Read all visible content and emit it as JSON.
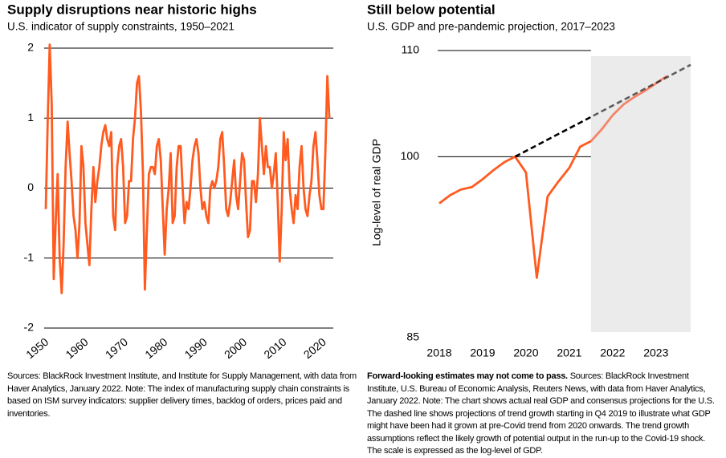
{
  "chart_data": [
    {
      "type": "line",
      "title": "Supply disruptions near historic highs",
      "subtitle": "U.S. indicator of supply constraints, 1950–2021",
      "color": "#ff5a1f",
      "x": [
        1950,
        1950.5,
        1951,
        1951.5,
        1952,
        1952.5,
        1953,
        1953.5,
        1954,
        1954.5,
        1955,
        1955.5,
        1956,
        1956.5,
        1957,
        1957.5,
        1958,
        1958.5,
        1959,
        1959.5,
        1960,
        1960.5,
        1961,
        1961.5,
        1962,
        1962.5,
        1963,
        1963.5,
        1964,
        1964.5,
        1965,
        1965.5,
        1966,
        1966.5,
        1967,
        1967.5,
        1968,
        1968.5,
        1969,
        1969.5,
        1970,
        1970.5,
        1971,
        1971.5,
        1972,
        1972.5,
        1973,
        1973.5,
        1974,
        1974.5,
        1975,
        1975.5,
        1976,
        1976.5,
        1977,
        1977.5,
        1978,
        1978.5,
        1979,
        1979.5,
        1980,
        1980.5,
        1981,
        1981.5,
        1982,
        1982.5,
        1983,
        1983.5,
        1984,
        1984.5,
        1985,
        1985.5,
        1986,
        1986.5,
        1987,
        1987.5,
        1988,
        1988.5,
        1989,
        1989.5,
        1990,
        1990.5,
        1991,
        1991.5,
        1992,
        1992.5,
        1993,
        1993.5,
        1994,
        1994.5,
        1995,
        1995.5,
        1996,
        1996.5,
        1997,
        1997.5,
        1998,
        1998.5,
        1999,
        1999.5,
        2000,
        2000.5,
        2001,
        2001.5,
        2002,
        2002.5,
        2003,
        2003.5,
        2004,
        2004.5,
        2005,
        2005.5,
        2006,
        2006.5,
        2007,
        2007.5,
        2008,
        2008.5,
        2009,
        2009.5,
        2010,
        2010.5,
        2011,
        2011.5,
        2012,
        2012.5,
        2013,
        2013.5,
        2014,
        2014.5,
        2015,
        2015.5,
        2016,
        2016.5,
        2017,
        2017.5,
        2018,
        2018.5,
        2019,
        2019.5,
        2020,
        2020.5,
        2021,
        2021.5
      ],
      "values": [
        -0.3,
        1.0,
        2.05,
        1.2,
        -1.3,
        -0.5,
        0.2,
        -1.0,
        -1.5,
        -0.8,
        0.3,
        0.95,
        0.5,
        0.1,
        -0.4,
        -0.6,
        -1.0,
        -0.5,
        0.6,
        0.3,
        -0.5,
        -0.8,
        -1.1,
        -0.3,
        0.3,
        -0.2,
        0.1,
        0.3,
        0.6,
        0.8,
        0.9,
        0.7,
        0.6,
        0.8,
        -0.4,
        -0.6,
        0.3,
        0.6,
        0.7,
        0.3,
        -0.5,
        -0.4,
        0.1,
        0.1,
        0.7,
        1.0,
        1.5,
        1.6,
        1.1,
        0.2,
        -1.45,
        -0.6,
        0.2,
        0.3,
        0.3,
        0.2,
        0.6,
        0.7,
        0.4,
        -0.3,
        -0.95,
        -0.3,
        0.0,
        0.5,
        -0.5,
        -0.4,
        0.3,
        0.6,
        0.6,
        0.0,
        -0.5,
        -0.2,
        -0.3,
        0.0,
        0.4,
        0.6,
        0.7,
        0.5,
        0.0,
        -0.3,
        -0.2,
        -0.4,
        -0.5,
        0.0,
        0.1,
        0.0,
        0.1,
        0.3,
        0.7,
        0.8,
        0.3,
        -0.3,
        -0.4,
        -0.2,
        0.1,
        0.4,
        -0.1,
        -0.3,
        0.1,
        0.5,
        0.4,
        -0.2,
        -0.7,
        -0.6,
        0.1,
        0.1,
        -0.2,
        0.2,
        1.0,
        0.6,
        0.2,
        0.6,
        0.3,
        0.3,
        0.0,
        0.2,
        0.5,
        -0.2,
        -1.05,
        -0.3,
        0.8,
        0.4,
        0.7,
        0.0,
        -0.3,
        -0.5,
        -0.1,
        -0.3,
        0.3,
        0.6,
        0.0,
        -0.3,
        -0.4,
        -0.1,
        0.1,
        0.6,
        0.8,
        0.4,
        -0.1,
        -0.3,
        -0.3,
        0.5,
        1.6,
        1.0
      ],
      "xlim": [
        1950,
        2022.5
      ],
      "xticks": [
        1950,
        1960,
        1970,
        1980,
        1990,
        2000,
        2010,
        2020
      ],
      "ylim": [
        -2,
        2
      ],
      "yticks": [
        -2,
        -1,
        0,
        1,
        2
      ],
      "grid": true,
      "note": "Sources: BlackRock Investment Institute, and Institute for Supply Management, with data from Haver Analytics, January 2022. Note: The index of manufacturing supply chain constraints is based on ISM survey indicators: supplier delivery times, backlog of orders, prices paid and inventories."
    },
    {
      "type": "line",
      "title": "Still below potential",
      "subtitle": "U.S. GDP and pre-pandemic projection, 2017–2023",
      "y_label": "Log-level of real GDP",
      "log_scale": true,
      "series": [
        {
          "color": "#ff5a1f",
          "x": [
            2018,
            2018.25,
            2018.5,
            2018.75,
            2019,
            2019.25,
            2019.5,
            2019.75,
            2020,
            2020.25,
            2020.5,
            2020.75,
            2021,
            2021.25,
            2021.5
          ],
          "values": [
            95.9,
            96.6,
            97.1,
            97.3,
            98.0,
            98.8,
            99.5,
            100,
            98.6,
            89.7,
            96.5,
            97.8,
            99.0,
            100.9,
            101.4
          ]
        },
        {
          "color": "#f4846a",
          "x": [
            2021.5,
            2021.75,
            2022,
            2022.25,
            2022.5,
            2022.75,
            2023,
            2023.25
          ],
          "values": [
            101.4,
            102.5,
            103.8,
            104.8,
            105.5,
            106.1,
            106.8,
            107.5
          ]
        },
        {
          "color": "#000000",
          "dashed": true,
          "x": [
            2019.75,
            2023.8
          ],
          "values": [
            100,
            108.6
          ]
        }
      ],
      "xlim": [
        2018,
        2023.8
      ],
      "xticks": [
        2018,
        2019,
        2020,
        2021,
        2022,
        2023
      ],
      "ylim": [
        85,
        110
      ],
      "yticks": [
        85,
        100,
        110
      ],
      "grid": true,
      "disclaimer": "Forward-looking estimates may not come to pass.",
      "note": "Sources: BlackRock Investment Institute, U.S. Bureau of Economic Analysis, Reuters News, with data from Haver Analytics, January 2022. Note: The chart shows actual real GDP and consensus projections for the U.S. The dashed line shows projections of trend growth starting in Q4 2019 to illustrate what GDP might have been had it grown at pre-Covid trend from 2020 onwards. The trend growth assumptions reflect the likely growth of potential output in the run-up to the Covid-19 shock. The scale is expressed as the log-level of GDP."
    }
  ]
}
